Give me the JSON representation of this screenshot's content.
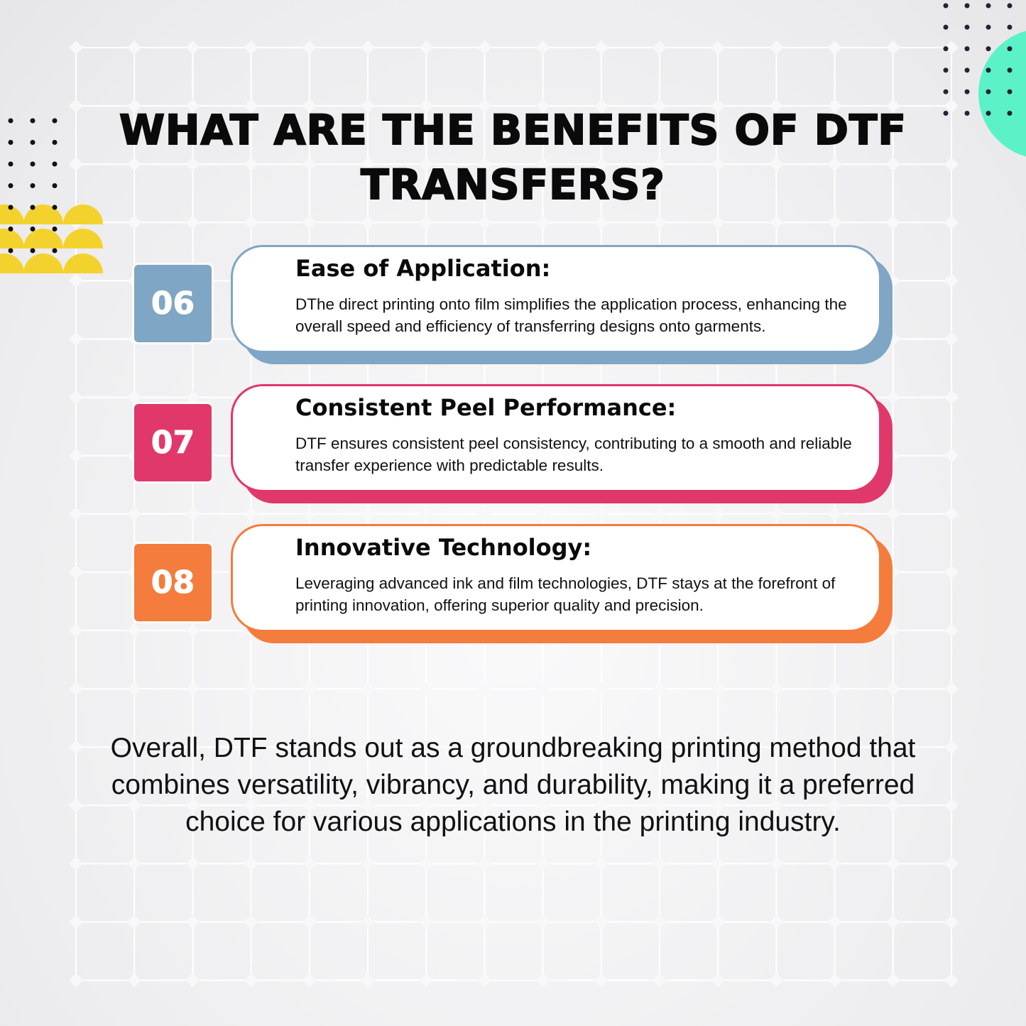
{
  "title": "WHAT ARE THE BENEFITS OF DTF TRANSFERS?",
  "items": [
    {
      "number": "06",
      "heading": "Ease of Application:",
      "text": "DThe direct printing onto film simplifies the application process, enhancing the overall speed and efficiency of transferring designs onto garments.",
      "color": "#7fa6c4"
    },
    {
      "number": "07",
      "heading": "Consistent Peel Performance:",
      "text": "DTF ensures consistent peel consistency, contributing to a smooth and reliable transfer experience with predictable results.",
      "color": "#e0386a"
    },
    {
      "number": "08",
      "heading": "Innovative Technology:",
      "text": "Leveraging advanced ink and film technologies, DTF stays at the forefront of printing innovation, offering superior quality and precision.",
      "color": "#f47c3c"
    }
  ],
  "summary": "Overall, DTF stands out as a groundbreaking printing method that combines versatility, vibrancy, and durability, making it a preferred choice for various applications in the printing industry.",
  "colors": {
    "yellow": "#f4d22e",
    "teal": "#5cf2c8",
    "dots": "#111111"
  }
}
